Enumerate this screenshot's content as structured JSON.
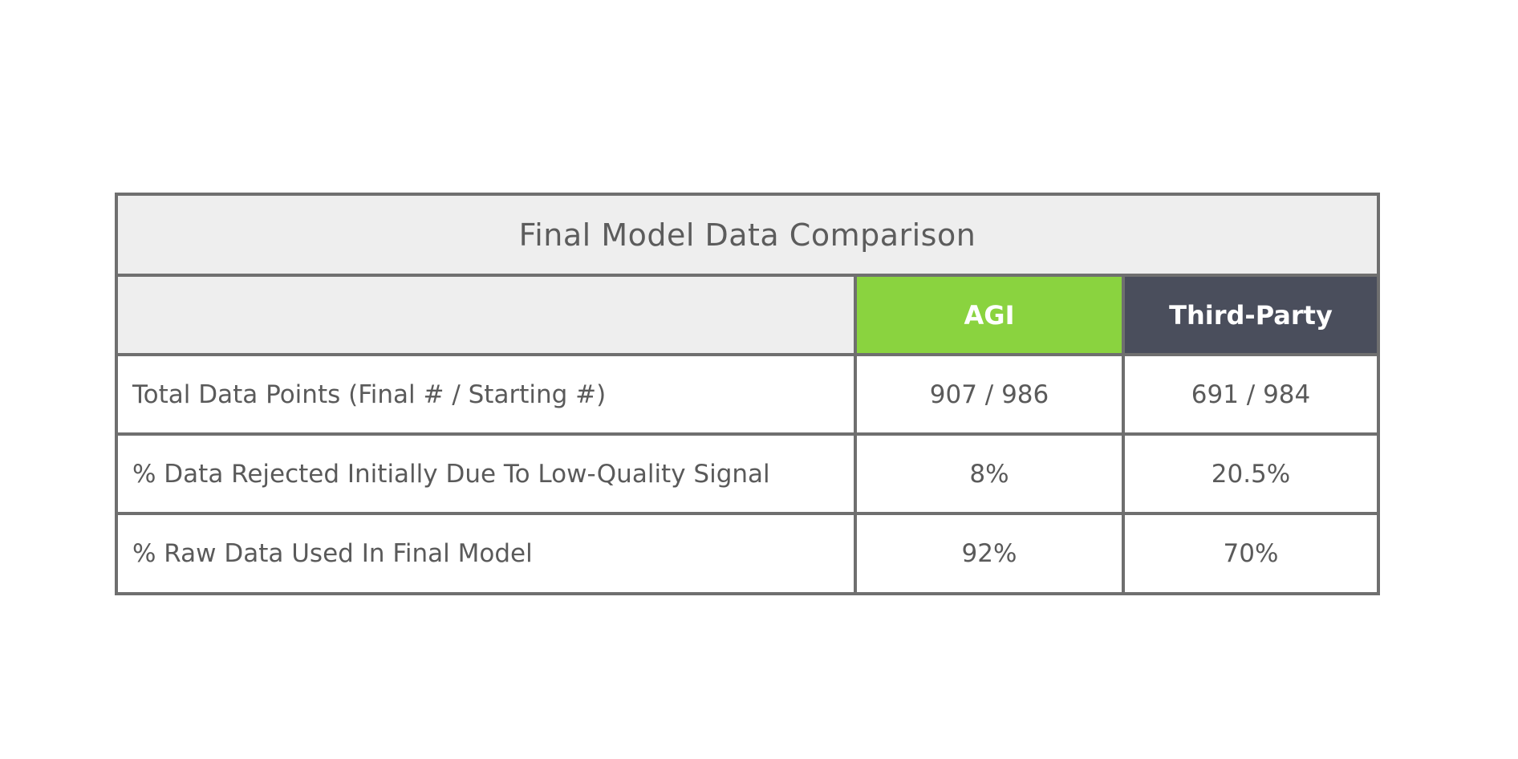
{
  "table": {
    "title": "Final Model Data Comparison",
    "columns": {
      "label": "",
      "agi": "AGI",
      "third_party": "Third-Party"
    },
    "colors": {
      "agi_header_bg": "#8ad33f",
      "third_party_header_bg": "#4a4e5c",
      "title_bg": "#eeeeee",
      "border": "#6f6f6f"
    },
    "rows": [
      {
        "label": "Total Data Points (Final # / Starting #)",
        "agi": "907 / 986",
        "third_party": "691 / 984"
      },
      {
        "label": "% Data Rejected Initially Due To Low-Quality Signal",
        "agi": "8%",
        "third_party": "20.5%"
      },
      {
        "label": "% Raw Data Used In Final Model",
        "agi": "92%",
        "third_party": "70%"
      }
    ]
  }
}
